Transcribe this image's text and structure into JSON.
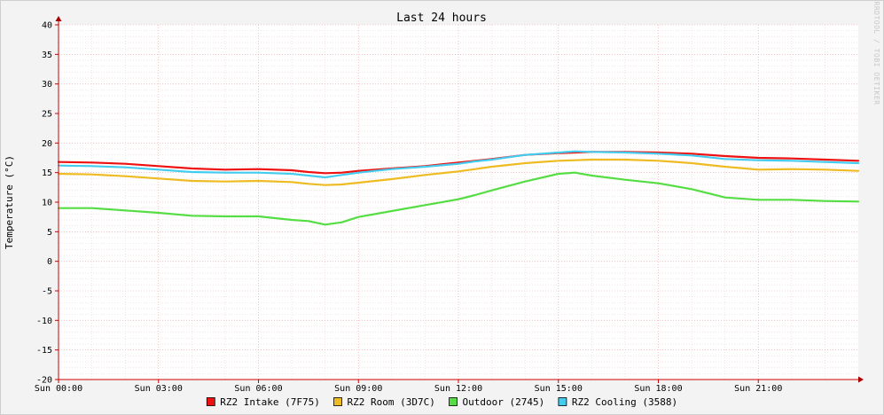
{
  "chart_data": {
    "type": "line",
    "title": "Last 24 hours",
    "ylabel": "Temperature (°C)",
    "xlabel": "",
    "watermark": "RRDTOOL / TOBI OETIKER",
    "x_range_hours": [
      0,
      24
    ],
    "ylim": [
      -20,
      40
    ],
    "y_ticks": [
      -20,
      -15,
      -10,
      -5,
      0,
      5,
      10,
      15,
      20,
      25,
      30,
      35,
      40
    ],
    "x_ticks": [
      {
        "hour": 0,
        "label": "Sun 00:00"
      },
      {
        "hour": 3,
        "label": "Sun 03:00"
      },
      {
        "hour": 6,
        "label": "Sun 06:00"
      },
      {
        "hour": 9,
        "label": "Sun 09:00"
      },
      {
        "hour": 12,
        "label": "Sun 12:00"
      },
      {
        "hour": 15,
        "label": "Sun 15:00"
      },
      {
        "hour": 18,
        "label": "Sun 18:00"
      },
      {
        "hour": 21,
        "label": "Sun 21:00"
      }
    ],
    "grid": true,
    "legend_position": "bottom",
    "background_color": "#f3f3f3",
    "plot_background_color": "#ffffff",
    "major_grid_color": "#f0a0a0",
    "minor_grid_color": "#e6c8c8",
    "axis_color": "#cc0000",
    "x": [
      0,
      1,
      2,
      3,
      4,
      5,
      6,
      7,
      7.5,
      8,
      8.5,
      9,
      10,
      11,
      12,
      12.5,
      13,
      14,
      15,
      15.5,
      16,
      17,
      18,
      19,
      20,
      21,
      22,
      23,
      24
    ],
    "series": [
      {
        "name": "RZ2 Intake (7F75)",
        "color": "#ee1111",
        "values": [
          16.8,
          16.7,
          16.5,
          16.1,
          15.7,
          15.5,
          15.6,
          15.4,
          15.1,
          14.9,
          15.0,
          15.3,
          15.7,
          16.1,
          16.7,
          17.0,
          17.3,
          18.0,
          18.3,
          18.4,
          18.5,
          18.5,
          18.4,
          18.2,
          17.8,
          17.5,
          17.4,
          17.2,
          17.0
        ]
      },
      {
        "name": "RZ2 Room (3D7C)",
        "color": "#eebb22",
        "values": [
          14.8,
          14.7,
          14.4,
          14.0,
          13.6,
          13.5,
          13.6,
          13.4,
          13.1,
          12.9,
          13.0,
          13.3,
          13.9,
          14.6,
          15.2,
          15.6,
          16.0,
          16.6,
          17.0,
          17.1,
          17.2,
          17.2,
          17.0,
          16.6,
          16.0,
          15.5,
          15.6,
          15.5,
          15.3
        ]
      },
      {
        "name": "Outdoor (2745)",
        "color": "#55dd44",
        "values": [
          9.0,
          9.0,
          8.6,
          8.2,
          7.7,
          7.6,
          7.6,
          7.0,
          6.8,
          6.2,
          6.6,
          7.5,
          8.5,
          9.5,
          10.5,
          11.2,
          12.0,
          13.5,
          14.8,
          15.0,
          14.5,
          13.8,
          13.2,
          12.2,
          10.8,
          10.4,
          10.4,
          10.2,
          10.1
        ]
      },
      {
        "name": "RZ2 Cooling (3588)",
        "color": "#44ccee",
        "values": [
          16.2,
          16.1,
          15.9,
          15.5,
          15.1,
          15.0,
          15.0,
          14.8,
          14.5,
          14.2,
          14.6,
          15.0,
          15.6,
          16.0,
          16.5,
          16.9,
          17.2,
          18.0,
          18.4,
          18.6,
          18.5,
          18.4,
          18.2,
          17.9,
          17.3,
          17.1,
          17.0,
          16.8,
          16.6
        ]
      }
    ]
  }
}
